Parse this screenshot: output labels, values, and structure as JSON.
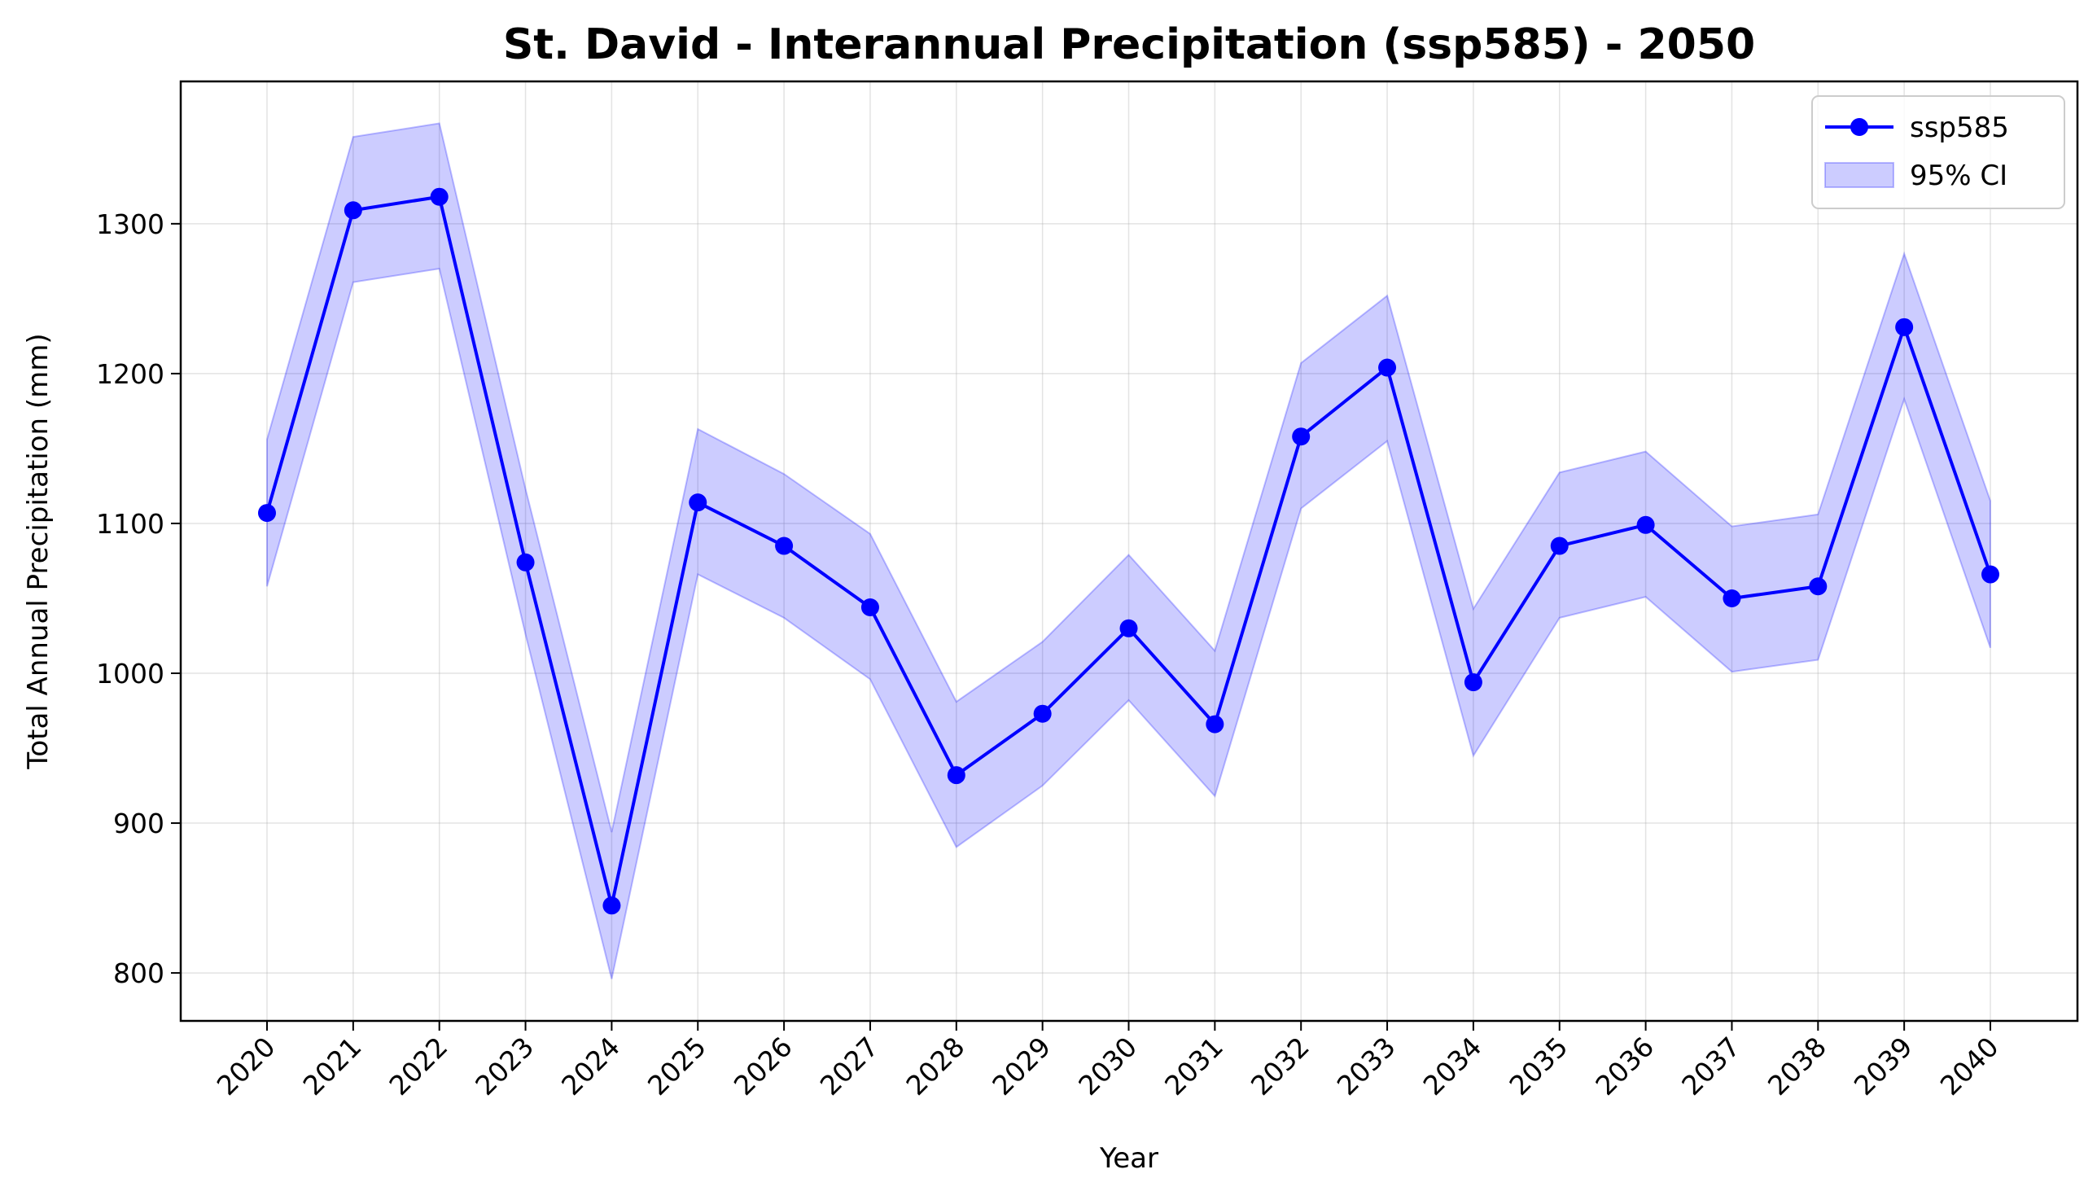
{
  "chart_data": {
    "type": "line",
    "title": "St. David - Interannual Precipitation (ssp585) - 2050",
    "xlabel": "Year",
    "ylabel": "Total Annual Precipitation (mm)",
    "x": [
      "2020",
      "2021",
      "2022",
      "2023",
      "2024",
      "2025",
      "2026",
      "2027",
      "2028",
      "2029",
      "2030",
      "2031",
      "2032",
      "2033",
      "2034",
      "2035",
      "2036",
      "2037",
      "2038",
      "2039",
      "2040"
    ],
    "yticks": [
      "800",
      "900",
      "1000",
      "1100",
      "1200",
      "1300"
    ],
    "ylim": [
      768,
      1395
    ],
    "grid": true,
    "legend_position": "top-right",
    "series": [
      {
        "name": "ssp585",
        "color": "#0000ff",
        "values": [
          1107,
          1309,
          1318,
          1074,
          845,
          1114,
          1085,
          1044,
          932,
          973,
          1030,
          966,
          1158,
          1204,
          994,
          1085,
          1099,
          1050,
          1058,
          1231,
          1066
        ]
      }
    ],
    "confidence_band": {
      "name": "95% CI",
      "color": "#0000ff",
      "lower": [
        1058,
        1261,
        1270,
        1026,
        796,
        1066,
        1037,
        996,
        884,
        925,
        982,
        918,
        1110,
        1155,
        945,
        1037,
        1051,
        1001,
        1009,
        1183,
        1017
      ],
      "upper": [
        1156,
        1358,
        1367,
        1123,
        894,
        1163,
        1133,
        1093,
        981,
        1021,
        1079,
        1015,
        1207,
        1252,
        1043,
        1134,
        1148,
        1098,
        1106,
        1280,
        1115
      ]
    }
  }
}
